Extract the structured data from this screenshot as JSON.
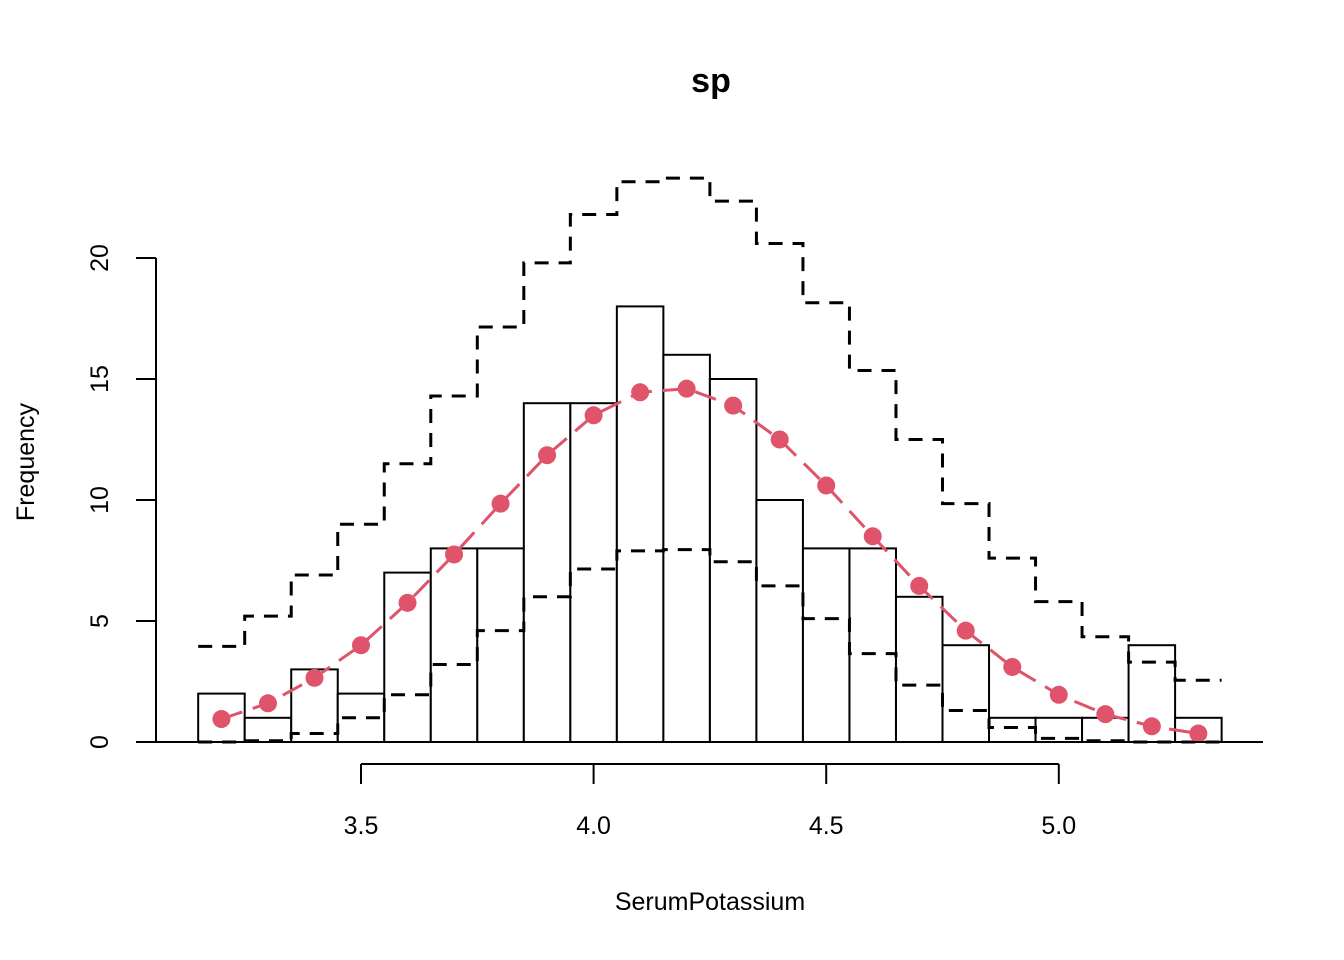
{
  "chart_data": {
    "type": "histogram",
    "title": "sp",
    "xlabel": "SerumPotassium",
    "ylabel": "Frequency",
    "bin_width": 0.1,
    "bin_centers": [
      3.2,
      3.3,
      3.4,
      3.5,
      3.6,
      3.7,
      3.8,
      3.9,
      4.0,
      4.1,
      4.2,
      4.3,
      4.4,
      4.5,
      4.6,
      4.7,
      4.8,
      4.9,
      5.0,
      5.1,
      5.2,
      5.3
    ],
    "counts": [
      2,
      1,
      3,
      2,
      7,
      8,
      8,
      14,
      14,
      18,
      16,
      15,
      10,
      8,
      8,
      6,
      4,
      1,
      1,
      1,
      4,
      1
    ],
    "expected": [
      0.95,
      1.6,
      2.65,
      4.0,
      5.75,
      7.75,
      9.85,
      11.85,
      13.5,
      14.45,
      14.6,
      13.9,
      12.5,
      10.6,
      8.5,
      6.45,
      4.6,
      3.1,
      1.95,
      1.15,
      0.65,
      0.35
    ],
    "upper_band": [
      3.95,
      5.2,
      6.9,
      9.0,
      11.5,
      14.3,
      17.15,
      19.8,
      21.8,
      23.15,
      23.3,
      22.35,
      20.6,
      18.15,
      15.35,
      12.5,
      9.85,
      7.6,
      5.8,
      4.35,
      3.3,
      2.55
    ],
    "lower_band": [
      0,
      0.05,
      0.35,
      1.0,
      1.95,
      3.2,
      4.6,
      6.0,
      7.15,
      7.9,
      7.95,
      7.45,
      6.45,
      5.1,
      3.65,
      2.35,
      1.3,
      0.6,
      0.15,
      0.05,
      0.0,
      0.0
    ],
    "x_ticks": [
      3.5,
      4.0,
      4.5,
      5.0
    ],
    "x_tick_labels": [
      "3.5",
      "4.0",
      "4.5",
      "5.0"
    ],
    "y_ticks": [
      0,
      5,
      10,
      15,
      20
    ],
    "y_tick_labels": [
      "0",
      "5",
      "10",
      "15",
      "20"
    ],
    "xlim": [
      3.05,
      5.45
    ],
    "ylim": [
      0,
      24
    ],
    "colors": {
      "bars": "#000000",
      "bands": "#000000",
      "expected": "#DF536B"
    }
  }
}
